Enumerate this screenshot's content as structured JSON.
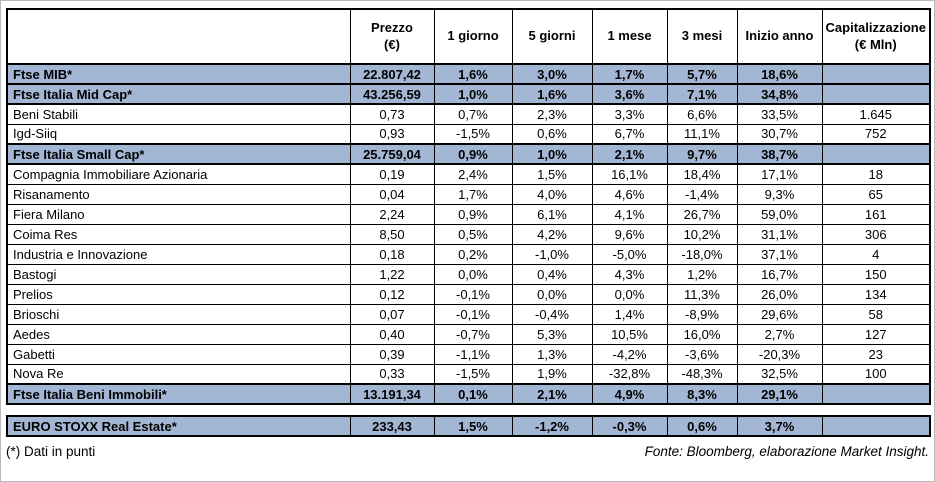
{
  "colors": {
    "index_row_bg": "#a3b6d3",
    "border": "#000000"
  },
  "chart_data": {
    "type": "table",
    "columns": [
      "",
      "Prezzo (€)",
      "1 giorno",
      "5 giorni",
      "1 mese",
      "3 mesi",
      "Inizio anno",
      "Capitalizzazione (€ Mln)"
    ],
    "header_display": [
      "",
      "Prezzo\n(€)",
      "1 giorno",
      "5 giorni",
      "1 mese",
      "3 mesi",
      "Inizio anno",
      "Capitalizzazione\n(€ Mln)"
    ],
    "rows": [
      {
        "label": "Ftse MIB*",
        "kind": "index",
        "values": [
          "22.807,42",
          "1,6%",
          "3,0%",
          "1,7%",
          "5,7%",
          "18,6%",
          ""
        ]
      },
      {
        "label": "Ftse Italia Mid Cap*",
        "kind": "index",
        "values": [
          "43.256,59",
          "1,0%",
          "1,6%",
          "3,6%",
          "7,1%",
          "34,8%",
          ""
        ]
      },
      {
        "label": "Beni Stabili",
        "kind": "stock",
        "values": [
          "0,73",
          "0,7%",
          "2,3%",
          "3,3%",
          "6,6%",
          "33,5%",
          "1.645"
        ]
      },
      {
        "label": "Igd-Siiq",
        "kind": "stock",
        "values": [
          "0,93",
          "-1,5%",
          "0,6%",
          "6,7%",
          "11,1%",
          "30,7%",
          "752"
        ]
      },
      {
        "label": "Ftse Italia Small Cap*",
        "kind": "index",
        "values": [
          "25.759,04",
          "0,9%",
          "1,0%",
          "2,1%",
          "9,7%",
          "38,7%",
          ""
        ]
      },
      {
        "label": "Compagnia Immobiliare Azionaria",
        "kind": "stock",
        "values": [
          "0,19",
          "2,4%",
          "1,5%",
          "16,1%",
          "18,4%",
          "17,1%",
          "18"
        ]
      },
      {
        "label": "Risanamento",
        "kind": "stock",
        "values": [
          "0,04",
          "1,7%",
          "4,0%",
          "4,6%",
          "-1,4%",
          "9,3%",
          "65"
        ]
      },
      {
        "label": "Fiera Milano",
        "kind": "stock",
        "values": [
          "2,24",
          "0,9%",
          "6,1%",
          "4,1%",
          "26,7%",
          "59,0%",
          "161"
        ]
      },
      {
        "label": "Coima Res",
        "kind": "stock",
        "values": [
          "8,50",
          "0,5%",
          "4,2%",
          "9,6%",
          "10,2%",
          "31,1%",
          "306"
        ]
      },
      {
        "label": "Industria e Innovazione",
        "kind": "stock",
        "values": [
          "0,18",
          "0,2%",
          "-1,0%",
          "-5,0%",
          "-18,0%",
          "37,1%",
          "4"
        ]
      },
      {
        "label": "Bastogi",
        "kind": "stock",
        "values": [
          "1,22",
          "0,0%",
          "0,4%",
          "4,3%",
          "1,2%",
          "16,7%",
          "150"
        ]
      },
      {
        "label": "Prelios",
        "kind": "stock",
        "values": [
          "0,12",
          "-0,1%",
          "0,0%",
          "0,0%",
          "11,3%",
          "26,0%",
          "134"
        ]
      },
      {
        "label": "Brioschi",
        "kind": "stock",
        "values": [
          "0,07",
          "-0,1%",
          "-0,4%",
          "1,4%",
          "-8,9%",
          "29,6%",
          "58"
        ]
      },
      {
        "label": "Aedes",
        "kind": "stock",
        "values": [
          "0,40",
          "-0,7%",
          "5,3%",
          "10,5%",
          "16,0%",
          "2,7%",
          "127"
        ]
      },
      {
        "label": "Gabetti",
        "kind": "stock",
        "values": [
          "0,39",
          "-1,1%",
          "1,3%",
          "-4,2%",
          "-3,6%",
          "-20,3%",
          "23"
        ]
      },
      {
        "label": "Nova Re",
        "kind": "stock",
        "values": [
          "0,33",
          "-1,5%",
          "1,9%",
          "-32,8%",
          "-48,3%",
          "32,5%",
          "100"
        ]
      },
      {
        "label": "Ftse Italia Beni Immobili*",
        "kind": "index",
        "values": [
          "13.191,34",
          "0,1%",
          "2,1%",
          "4,9%",
          "8,3%",
          "29,1%",
          ""
        ]
      }
    ],
    "separate_rows": [
      {
        "label": "EURO STOXX Real Estate*",
        "kind": "index",
        "values": [
          "233,43",
          "1,5%",
          "-1,2%",
          "-0,3%",
          "0,6%",
          "3,7%",
          ""
        ]
      }
    ],
    "footnote": "(*) Dati in punti",
    "source": "Fonte: Bloomberg, elaborazione Market Insight."
  }
}
